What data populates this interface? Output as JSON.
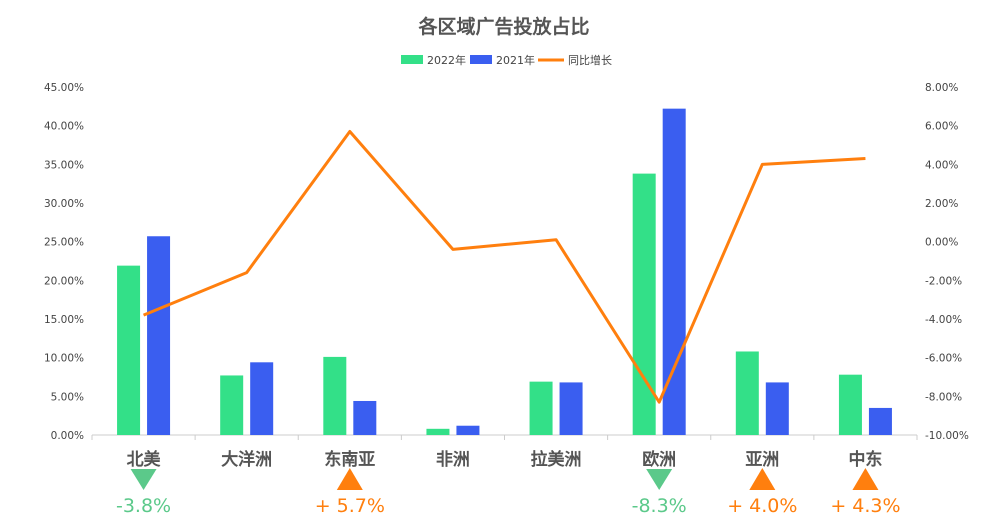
{
  "chart_data": {
    "type": "bar+line",
    "title": "各区域广告投放占比",
    "categories": [
      "北美",
      "大洋洲",
      "东南亚",
      "非洲",
      "拉美洲",
      "欧洲",
      "亚洲",
      "中东"
    ],
    "series": [
      {
        "name": "2022年",
        "type": "bar",
        "axis": "left",
        "color": "#33e088",
        "values": [
          21.9,
          7.7,
          10.1,
          0.8,
          6.9,
          33.8,
          10.8,
          7.8
        ]
      },
      {
        "name": "2021年",
        "type": "bar",
        "axis": "left",
        "color": "#3a5ef0",
        "values": [
          25.7,
          9.4,
          4.4,
          1.2,
          6.8,
          42.2,
          6.8,
          3.5
        ]
      },
      {
        "name": "同比增长",
        "type": "line",
        "axis": "right",
        "color": "#ff7f0e",
        "values": [
          -3.8,
          -1.6,
          5.7,
          -0.4,
          0.1,
          -8.3,
          4.0,
          4.3
        ]
      }
    ],
    "left_axis": {
      "min": 0,
      "max": 45,
      "step": 5,
      "ticks": [
        "0.00%",
        "5.00%",
        "10.00%",
        "15.00%",
        "20.00%",
        "25.00%",
        "30.00%",
        "35.00%",
        "40.00%",
        "45.00%"
      ]
    },
    "right_axis": {
      "min": -10,
      "max": 8,
      "step": 2,
      "ticks": [
        "-10.00%",
        "-8.00%",
        "-6.00%",
        "-4.00%",
        "-2.00%",
        "0.00%",
        "2.00%",
        "4.00%",
        "6.00%",
        "8.00%"
      ]
    },
    "growth_labels": [
      {
        "category": "北美",
        "text": "-3.8%",
        "direction": "down",
        "color": "#5bc98a"
      },
      {
        "category": "东南亚",
        "text": "+ 5.7%",
        "direction": "up",
        "color": "#ff7f0e"
      },
      {
        "category": "欧洲",
        "text": "-8.3%",
        "direction": "down",
        "color": "#5bc98a"
      },
      {
        "category": "亚洲",
        "text": "+ 4.0%",
        "direction": "up",
        "color": "#ff7f0e"
      },
      {
        "category": "中东",
        "text": "+ 4.3%",
        "direction": "up",
        "color": "#ff7f0e"
      }
    ],
    "legend_position": "top-center",
    "grid": false
  }
}
